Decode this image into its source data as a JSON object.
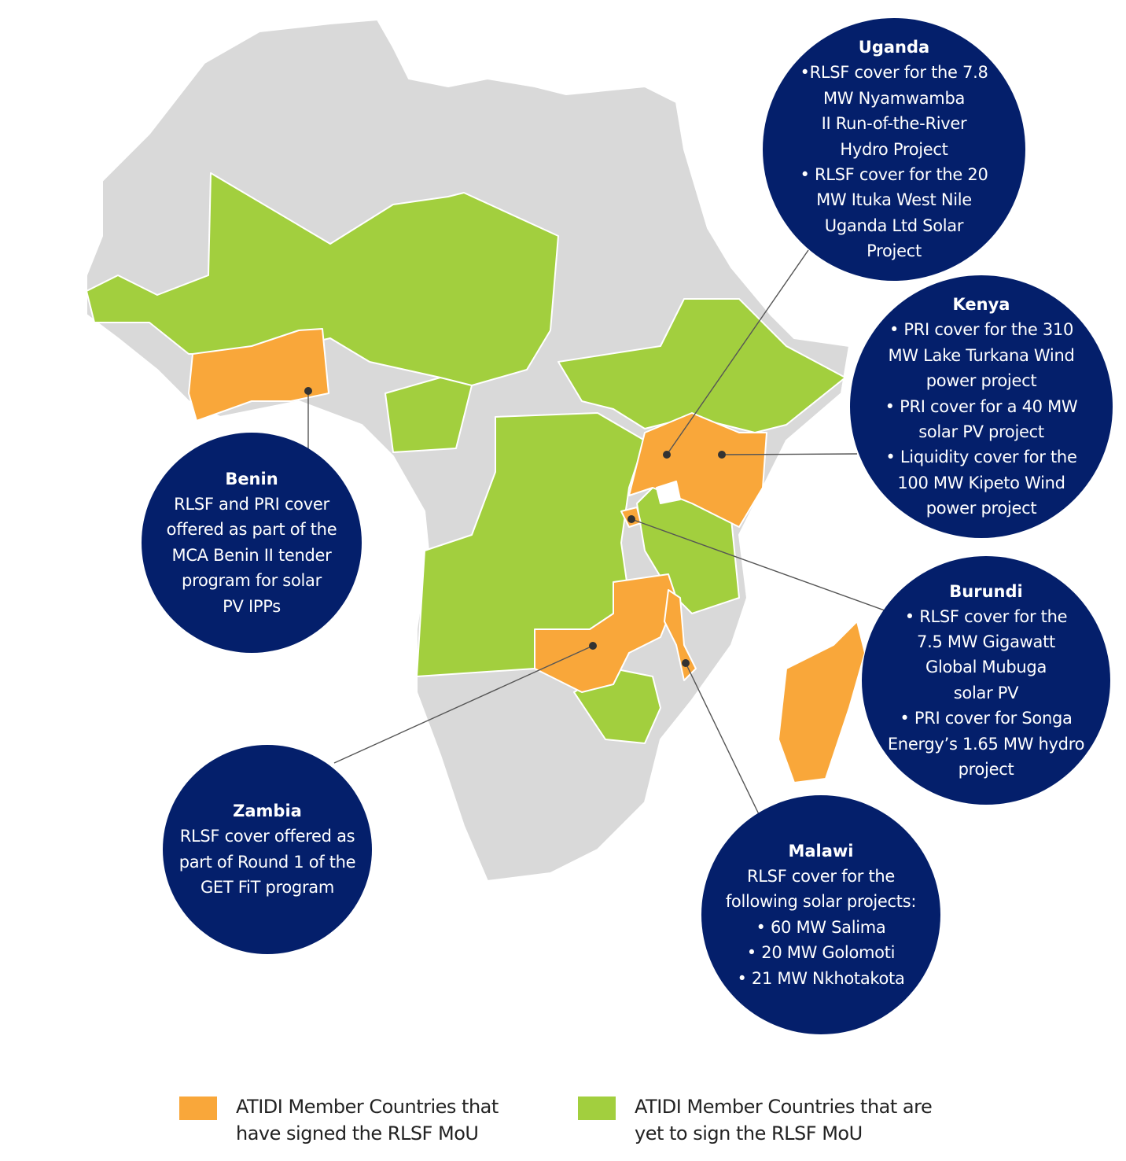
{
  "colors": {
    "signed": "#f9a73a",
    "yet_to_sign": "#a2cf3e",
    "other_land": "#d9d9d9",
    "bubble": "#041f6b",
    "leader_line": "#555555"
  },
  "callouts": [
    {
      "id": "uganda",
      "title": "Uganda",
      "lines": [
        "•RLSF cover for the 7.8",
        "MW Nyamwamba",
        "II Run-of-the-River",
        "Hydro Project",
        "• RLSF cover for the 20",
        "MW Ituka West Nile",
        "Uganda Ltd Solar",
        "Project"
      ]
    },
    {
      "id": "kenya",
      "title": "Kenya",
      "lines": [
        "• PRI cover for the 310",
        "MW Lake Turkana Wind",
        "power project",
        "• PRI cover for a 40 MW",
        "solar PV project",
        "• Liquidity cover for the",
        "100 MW Kipeto Wind",
        "power project"
      ]
    },
    {
      "id": "burundi",
      "title": "Burundi",
      "lines": [
        "• RLSF cover for the",
        "7.5 MW Gigawatt",
        "Global Mubuga",
        "solar PV",
        "• PRI cover for Songa",
        "Energy’s 1.65 MW hydro",
        "project"
      ]
    },
    {
      "id": "malawi",
      "title": "Malawi",
      "lines": [
        "RLSF cover for the",
        "following solar projects:",
        "• 60 MW Salima",
        "• 20 MW Golomoti",
        "• 21 MW Nkhotakota"
      ]
    },
    {
      "id": "zambia",
      "title": "Zambia",
      "lines": [
        "RLSF cover offered as",
        "part of Round 1 of the",
        "GET FiT program"
      ]
    },
    {
      "id": "benin",
      "title": "Benin",
      "lines": [
        "RLSF and PRI cover",
        "offered as part of the",
        "MCA Benin II tender",
        "program for solar",
        "PV IPPs"
      ]
    }
  ],
  "legend": [
    {
      "color_key": "signed",
      "text": [
        "ATIDI Member Countries that",
        "have signed the RLSF MoU"
      ]
    },
    {
      "color_key": "yet_to_sign",
      "text": [
        "ATIDI Member Countries that are",
        "yet to sign the RLSF MoU"
      ]
    }
  ]
}
